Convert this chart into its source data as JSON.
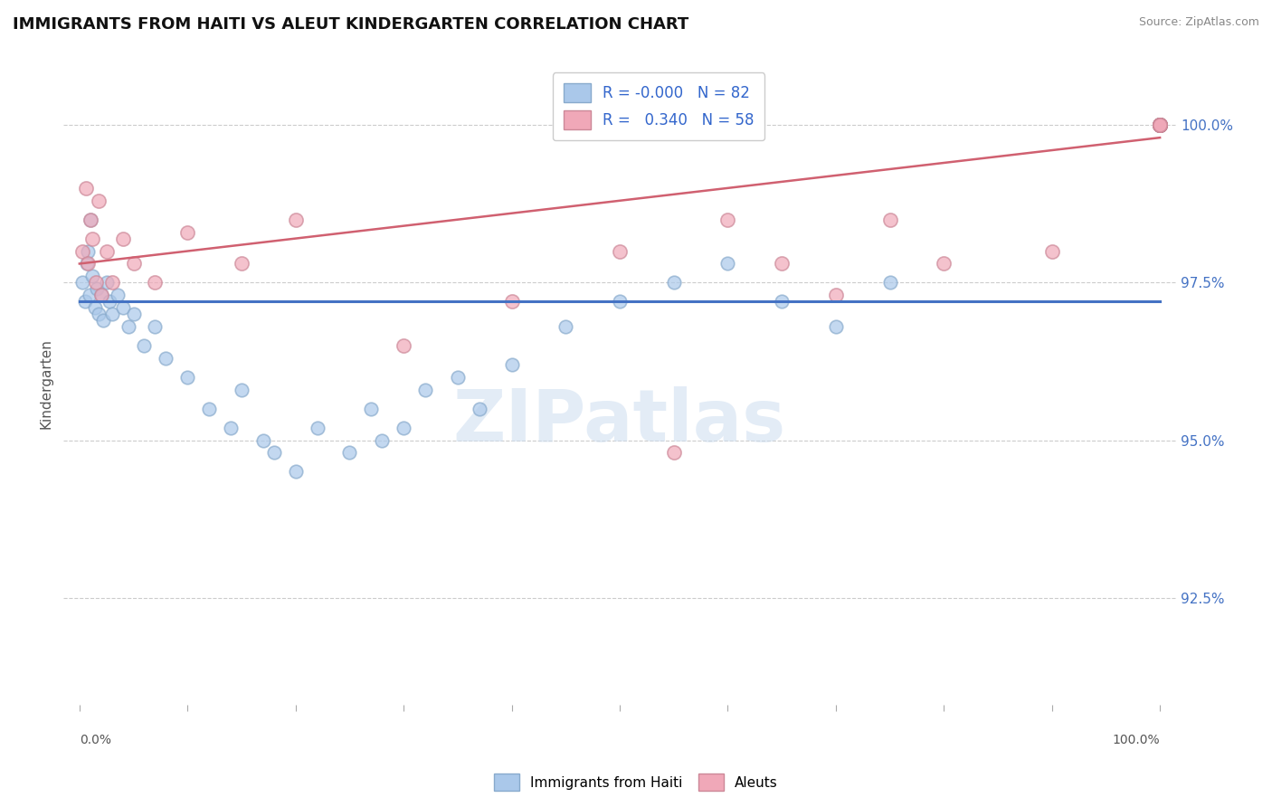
{
  "title": "IMMIGRANTS FROM HAITI VS ALEUT KINDERGARTEN CORRELATION CHART",
  "source": "Source: ZipAtlas.com",
  "ylabel": "Kindergarten",
  "y_tick_values": [
    92.5,
    95.0,
    97.5,
    100.0
  ],
  "ylim": [
    90.8,
    101.0
  ],
  "xlim": [
    -1.5,
    101.5
  ],
  "legend_r_haiti": "-0.000",
  "legend_n_haiti": "82",
  "legend_r_aleut": "0.340",
  "legend_n_aleut": "58",
  "haiti_color": "#aac8ea",
  "aleut_color": "#f0a8b8",
  "haiti_edge_color": "#88aacc",
  "aleut_edge_color": "#cc8898",
  "haiti_trend_color": "#4472c4",
  "aleut_trend_color": "#d06070",
  "watermark": "ZIPatlas",
  "haiti_trend_y0": 97.2,
  "haiti_trend_y1": 97.2,
  "aleut_trend_y0": 97.8,
  "aleut_trend_y1": 99.8,
  "haiti_x": [
    0.3,
    0.5,
    0.7,
    0.8,
    0.9,
    1.0,
    1.2,
    1.4,
    1.6,
    1.8,
    2.0,
    2.2,
    2.5,
    2.8,
    3.0,
    3.5,
    4.0,
    4.5,
    5.0,
    6.0,
    7.0,
    8.0,
    10.0,
    12.0,
    14.0,
    15.0,
    17.0,
    18.0,
    20.0,
    22.0,
    25.0,
    27.0,
    28.0,
    30.0,
    32.0,
    35.0,
    37.0,
    40.0,
    45.0,
    50.0,
    55.0,
    60.0,
    65.0,
    70.0,
    75.0,
    100.0,
    100.0,
    100.0,
    100.0,
    100.0,
    100.0,
    100.0,
    100.0,
    100.0,
    100.0,
    100.0,
    100.0,
    100.0,
    100.0,
    100.0,
    100.0,
    100.0,
    100.0,
    100.0,
    100.0,
    100.0,
    100.0,
    100.0,
    100.0,
    100.0,
    100.0,
    100.0,
    100.0,
    100.0,
    100.0,
    100.0,
    100.0,
    100.0,
    100.0,
    100.0,
    100.0,
    100.0
  ],
  "haiti_y": [
    97.5,
    97.2,
    97.8,
    98.0,
    97.3,
    98.5,
    97.6,
    97.1,
    97.4,
    97.0,
    97.3,
    96.9,
    97.5,
    97.2,
    97.0,
    97.3,
    97.1,
    96.8,
    97.0,
    96.5,
    96.8,
    96.3,
    96.0,
    95.5,
    95.2,
    95.8,
    95.0,
    94.8,
    94.5,
    95.2,
    94.8,
    95.5,
    95.0,
    95.2,
    95.8,
    96.0,
    95.5,
    96.2,
    96.8,
    97.2,
    97.5,
    97.8,
    97.2,
    96.8,
    97.5,
    100.0,
    100.0,
    100.0,
    100.0,
    100.0,
    100.0,
    100.0,
    100.0,
    100.0,
    100.0,
    100.0,
    100.0,
    100.0,
    100.0,
    100.0,
    100.0,
    100.0,
    100.0,
    100.0,
    100.0,
    100.0,
    100.0,
    100.0,
    100.0,
    100.0,
    100.0,
    100.0,
    100.0,
    100.0,
    100.0,
    100.0,
    100.0,
    100.0,
    100.0,
    100.0,
    100.0,
    100.0
  ],
  "aleut_x": [
    0.3,
    0.6,
    0.8,
    1.0,
    1.2,
    1.5,
    1.8,
    2.0,
    2.5,
    3.0,
    4.0,
    5.0,
    7.0,
    10.0,
    15.0,
    20.0,
    30.0,
    40.0,
    50.0,
    55.0,
    60.0,
    65.0,
    70.0,
    75.0,
    80.0,
    90.0,
    100.0,
    100.0,
    100.0,
    100.0,
    100.0,
    100.0,
    100.0,
    100.0,
    100.0,
    100.0,
    100.0,
    100.0,
    100.0,
    100.0,
    100.0,
    100.0,
    100.0,
    100.0,
    100.0,
    100.0,
    100.0,
    100.0,
    100.0,
    100.0,
    100.0,
    100.0,
    100.0,
    100.0,
    100.0,
    100.0,
    100.0,
    100.0
  ],
  "aleut_y": [
    98.0,
    99.0,
    97.8,
    98.5,
    98.2,
    97.5,
    98.8,
    97.3,
    98.0,
    97.5,
    98.2,
    97.8,
    97.5,
    98.3,
    97.8,
    98.5,
    96.5,
    97.2,
    98.0,
    94.8,
    98.5,
    97.8,
    97.3,
    98.5,
    97.8,
    98.0,
    100.0,
    100.0,
    100.0,
    100.0,
    100.0,
    100.0,
    100.0,
    100.0,
    100.0,
    100.0,
    100.0,
    100.0,
    100.0,
    100.0,
    100.0,
    100.0,
    100.0,
    100.0,
    100.0,
    100.0,
    100.0,
    100.0,
    100.0,
    100.0,
    100.0,
    100.0,
    100.0,
    100.0,
    100.0,
    100.0,
    100.0,
    100.0
  ]
}
